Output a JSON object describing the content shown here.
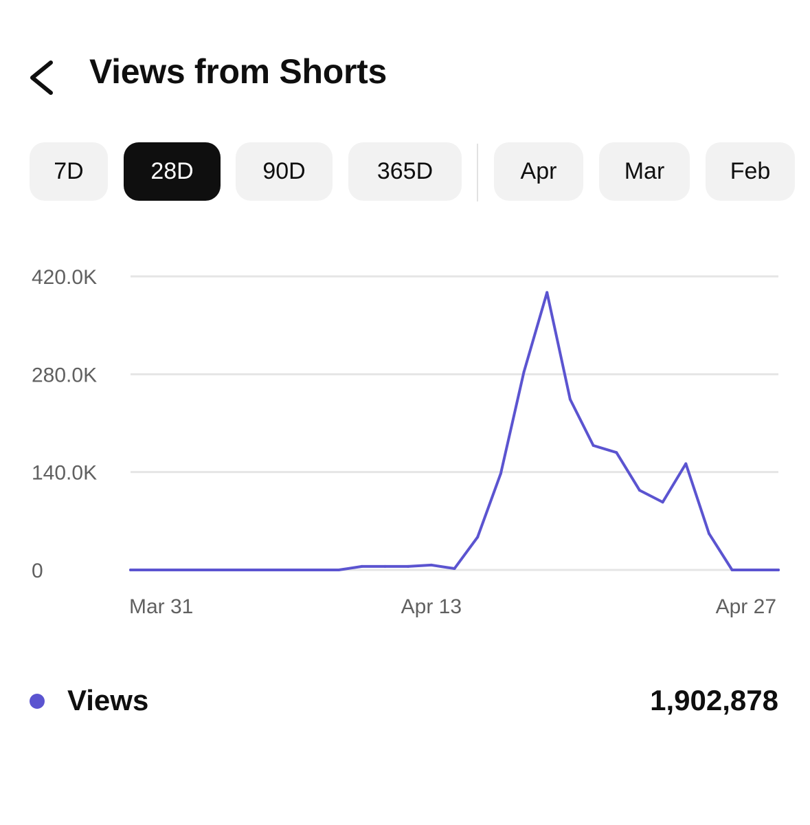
{
  "header": {
    "title": "Views from Shorts",
    "back_icon": "chevron-left-icon"
  },
  "chips": [
    {
      "label": "7D",
      "active": false
    },
    {
      "label": "28D",
      "active": true
    },
    {
      "label": "90D",
      "active": false
    },
    {
      "label": "365D",
      "active": false
    },
    {
      "label": "Apr",
      "active": false
    },
    {
      "label": "Mar",
      "active": false
    },
    {
      "label": "Feb",
      "active": false
    }
  ],
  "colors": {
    "series": "#5b54d0",
    "active_chip_bg": "#0f0f0f",
    "chip_bg": "#f2f2f2",
    "grid": "#e5e5e5",
    "axis_text": "#606060"
  },
  "chart_data": {
    "type": "line",
    "x_start": "Mar 31",
    "x": [
      "Mar 31",
      "Apr 1",
      "Apr 2",
      "Apr 3",
      "Apr 4",
      "Apr 5",
      "Apr 6",
      "Apr 7",
      "Apr 8",
      "Apr 9",
      "Apr 10",
      "Apr 11",
      "Apr 12",
      "Apr 13",
      "Apr 14",
      "Apr 15",
      "Apr 16",
      "Apr 17",
      "Apr 18",
      "Apr 19",
      "Apr 20",
      "Apr 21",
      "Apr 22",
      "Apr 23",
      "Apr 24",
      "Apr 25",
      "Apr 26",
      "Apr 27",
      "Apr 28"
    ],
    "x_ticks": [
      "Mar 31",
      "Apr 13",
      "Apr 27"
    ],
    "y_ticks": [
      "0",
      "140.0K",
      "280.0K",
      "420.0K"
    ],
    "ylim": [
      0,
      420000
    ],
    "grid": true,
    "series": [
      {
        "name": "Views",
        "values": [
          0,
          0,
          0,
          0,
          0,
          0,
          0,
          0,
          0,
          0,
          5000,
          5000,
          5000,
          7000,
          2000,
          47000,
          138000,
          283000,
          397000,
          244000,
          178000,
          168000,
          114000,
          97000,
          152000,
          52000,
          0,
          0,
          0
        ]
      }
    ]
  },
  "legend": {
    "label": "Views",
    "total": "1,902,878"
  }
}
